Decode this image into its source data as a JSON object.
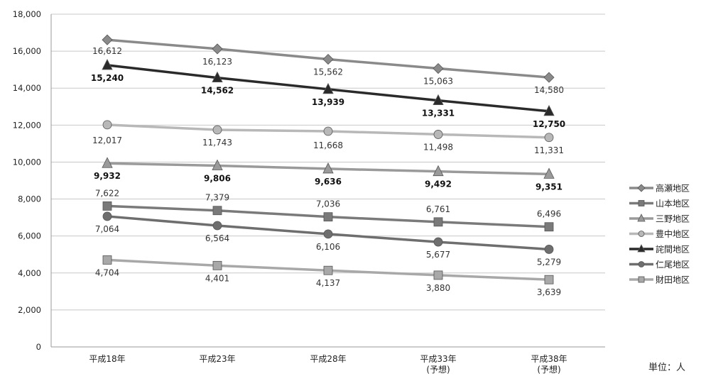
{
  "chart_data": {
    "type": "line",
    "title": "",
    "xlabel": "",
    "ylabel": "",
    "unit_note": "単位：人",
    "categories": [
      "平成18年",
      "平成23年",
      "平成28年",
      "平成33年",
      "平成38年"
    ],
    "category_sublabels": [
      "",
      "",
      "",
      "(予想)",
      "(予想)"
    ],
    "ylim": [
      0,
      18000
    ],
    "yticks": [
      "0",
      "2,000",
      "4,000",
      "6,000",
      "8,000",
      "10,000",
      "12,000",
      "14,000",
      "16,000",
      "18,000"
    ],
    "grid": true,
    "legend_position": "right",
    "series": [
      {
        "name": "高瀬地区",
        "values": [
          16612,
          16123,
          15562,
          15063,
          14580
        ],
        "labels": [
          "16,612",
          "16,123",
          "15,562",
          "15,063",
          "14,580"
        ],
        "color": "#8a8a8a",
        "marker": "diamond",
        "label_bold": false
      },
      {
        "name": "山本地区",
        "values": [
          7622,
          7379,
          7036,
          6761,
          6496
        ],
        "labels": [
          "7,622",
          "7,379",
          "7,036",
          "6,761",
          "6,496"
        ],
        "color": "#7a7a7a",
        "marker": "square",
        "label_bold": false
      },
      {
        "name": "三野地区",
        "values": [
          9932,
          9806,
          9636,
          9492,
          9351
        ],
        "labels": [
          "9,932",
          "9,806",
          "9,636",
          "9,492",
          "9,351"
        ],
        "color": "#9a9a9a",
        "marker": "triangle",
        "label_bold": true
      },
      {
        "name": "豊中地区",
        "values": [
          12017,
          11743,
          11668,
          11498,
          11331
        ],
        "labels": [
          "12,017",
          "11,743",
          "11,668",
          "11,498",
          "11,331"
        ],
        "color": "#b8b8b8",
        "marker": "circle",
        "label_bold": false
      },
      {
        "name": "詫間地区",
        "values": [
          15240,
          14562,
          13939,
          13331,
          12750
        ],
        "labels": [
          "15,240",
          "14,562",
          "13,939",
          "13,331",
          "12,750"
        ],
        "color": "#2a2a2a",
        "marker": "triangle",
        "label_bold": true
      },
      {
        "name": "仁尾地区",
        "values": [
          7064,
          6564,
          6106,
          5677,
          5279
        ],
        "labels": [
          "7,064",
          "6,564",
          "6,106",
          "5,677",
          "5,279"
        ],
        "color": "#6e6e6e",
        "marker": "circle",
        "label_bold": false
      },
      {
        "name": "財田地区",
        "values": [
          4704,
          4401,
          4137,
          3880,
          3639
        ],
        "labels": [
          "4,704",
          "4,401",
          "4,137",
          "3,880",
          "3,639"
        ],
        "color": "#a8a8a8",
        "marker": "square",
        "label_bold": false
      }
    ]
  }
}
